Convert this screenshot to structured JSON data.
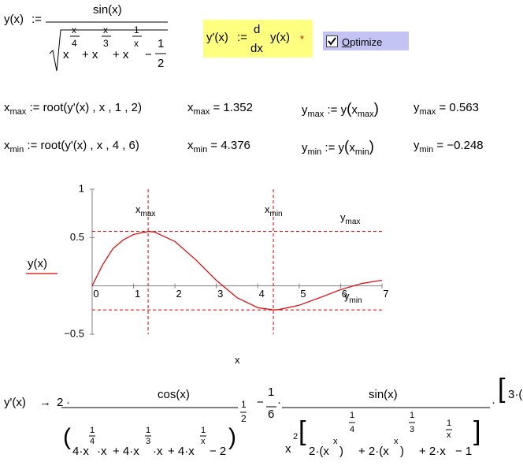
{
  "definition": {
    "tokens": [
      "y(x)",
      ":=",
      "sin(x)",
      "x",
      "x",
      "4",
      "+ x",
      "x",
      "3",
      "+ x",
      "1",
      "x",
      "−",
      "1",
      "2"
    ]
  },
  "derivative_def": {
    "tokens": [
      "y'(x)",
      ":=",
      "d",
      "dx",
      "y(x)",
      "*"
    ]
  },
  "optimize": {
    "label": "Optimize",
    "checked": true
  },
  "rows": [
    {
      "var": "x",
      "sub": "max",
      "assign": ":=",
      "expr": "root(y'(x) , x , 1 , 2)",
      "eq": "=",
      "result": 1.352,
      "yvar": "y",
      "ysub": "max",
      "yassign": ":=",
      "call": {
        "fn": "y",
        "open": "(",
        "arg": "x",
        "sub": "max",
        "close": ")"
      },
      "yeq": "=",
      "yresult": 0.563
    },
    {
      "var": "x",
      "sub": "min",
      "assign": ":=",
      "expr": "root(y'(x) , x , 4 , 6)",
      "eq": "=",
      "result": 4.376,
      "yvar": "y",
      "ysub": "min",
      "yassign": ":=",
      "call": {
        "fn": "y",
        "open": "(",
        "arg": "x",
        "sub": "min",
        "close": ")"
      },
      "yeq": "=",
      "yresult": {
        "value": -0.248,
        "label": "−0.248"
      }
    }
  ],
  "plot": {
    "legend_label": "y(x)",
    "x_label": "x",
    "color": "#e00000",
    "xlim": [
      0,
      7
    ],
    "ylim": [
      -0.5,
      1
    ],
    "xticks": [
      0,
      1,
      2,
      3,
      4,
      5,
      6,
      7
    ],
    "yticks": [
      {
        "value": -0.5,
        "label": "−0.5"
      },
      0.5,
      1
    ],
    "x": [
      0,
      0.25,
      0.5,
      0.75,
      1,
      1.352,
      1.5,
      2,
      2.5,
      3,
      3.5,
      4,
      4.376,
      4.5,
      5,
      5.5,
      6,
      6.5,
      7
    ],
    "y": [
      0,
      0.216,
      0.384,
      0.475,
      0.532,
      0.563,
      0.558,
      0.459,
      0.271,
      0.057,
      -0.122,
      -0.225,
      -0.248,
      -0.245,
      -0.2,
      -0.121,
      -0.039,
      0.024,
      0.059
    ],
    "markers": [
      {
        "t": "x",
        "s": "max"
      },
      {
        "t": "x",
        "s": "min"
      },
      {
        "t": "y",
        "s": "max"
      },
      {
        "t": "y",
        "s": "min"
      }
    ]
  },
  "symbolic": {
    "tokens": [
      "y'(x)",
      "→",
      "2",
      "·",
      "cos(x)",
      "(",
      "4·x",
      "1",
      "4",
      "·x",
      "+ 4·x",
      "1",
      "3",
      "·x",
      "+ 4·x",
      "1",
      "x",
      "− 2",
      ")",
      "1",
      "2",
      "−",
      "1",
      "6",
      "·",
      "sin(x)",
      "x",
      "2",
      "[",
      "2·(x",
      "x",
      ")",
      "1",
      "4",
      "+ 2·(x",
      "x",
      ")",
      "1",
      "3",
      "+ 2·x",
      "1",
      "x",
      "− 1",
      "]",
      "·",
      "[",
      "3·("
    ]
  }
}
